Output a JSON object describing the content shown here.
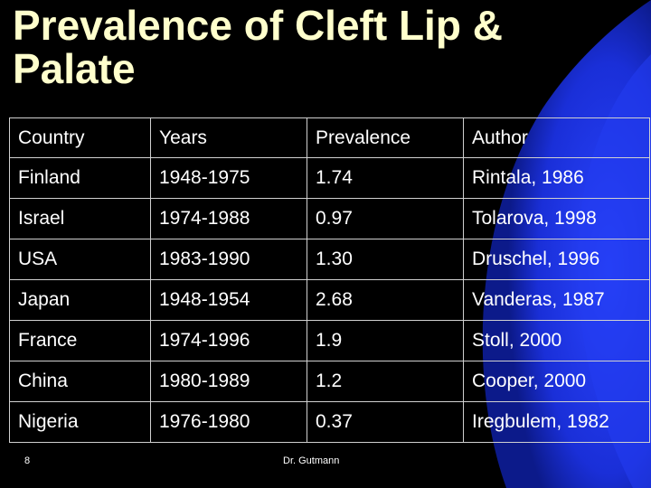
{
  "slide": {
    "title": "Prevalence of Cleft Lip &\nPalate",
    "slide_number": "8",
    "footer_author": "Dr. Gutmann",
    "colors": {
      "background": "#000000",
      "title": "#ffffcc",
      "text": "#ffffff",
      "swoosh": "#1a2fd8"
    }
  },
  "table": {
    "headers": [
      "Country",
      "Years",
      "Prevalence",
      "Author"
    ],
    "rows": [
      [
        "Finland",
        "1948-1975",
        "1.74",
        "Rintala, 1986"
      ],
      [
        "Israel",
        "1974-1988",
        "0.97",
        "Tolarova, 1998"
      ],
      [
        "USA",
        "1983-1990",
        "1.30",
        "Druschel, 1996"
      ],
      [
        "Japan",
        "1948-1954",
        "2.68",
        "Vanderas, 1987"
      ],
      [
        "France",
        "1974-1996",
        "1.9",
        "Stoll, 2000"
      ],
      [
        "China",
        "1980-1989",
        "1.2",
        "Cooper, 2000"
      ],
      [
        "Nigeria",
        "1976-1980",
        "0.37",
        "Iregbulem, 1982"
      ]
    ]
  }
}
